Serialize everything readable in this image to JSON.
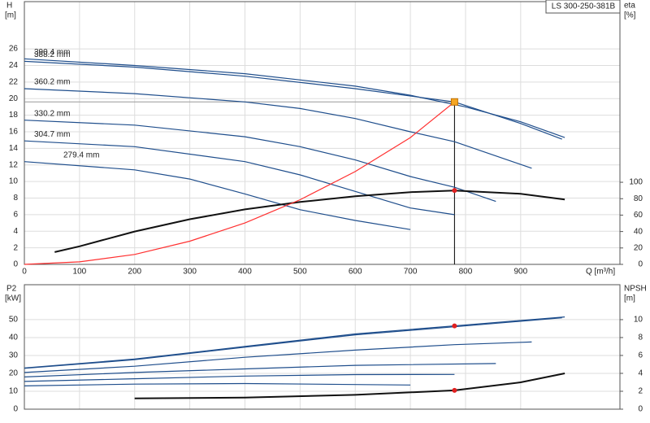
{
  "chart_data": [
    {
      "type": "line",
      "model": "LS 300-250-381B",
      "y_label": "H",
      "y_unit": "[m]",
      "y2_label": "eta",
      "y2_unit": "[%]",
      "x_label": "Q [m³/h]",
      "xlim": [
        0,
        1080
      ],
      "xticks": [
        0,
        100,
        200,
        300,
        400,
        500,
        600,
        700,
        800,
        900
      ],
      "ylim": [
        0,
        31.7
      ],
      "yticks": [
        0,
        2,
        4,
        6,
        8,
        10,
        12,
        14,
        16,
        18,
        20,
        22,
        24,
        26
      ],
      "y2lim": [
        0,
        320
      ],
      "y2ticks": [
        0,
        20,
        40,
        60,
        80,
        100
      ],
      "grid": true,
      "series": [
        {
          "name": "390.4 mm",
          "color": "#1f4e8c",
          "x": [
            0,
            200,
            400,
            600,
            700,
            800,
            900,
            980
          ],
          "values": [
            24.8,
            24.0,
            23.0,
            21.5,
            20.4,
            19.0,
            17.2,
            15.3
          ]
        },
        {
          "name": "388.2 mm",
          "color": "#1f4e8c",
          "x": [
            0,
            200,
            400,
            600,
            780,
            900,
            975
          ],
          "values": [
            24.5,
            23.8,
            22.7,
            21.2,
            19.6,
            17.0,
            15.1
          ]
        },
        {
          "name": "360.2 mm",
          "color": "#1f4e8c",
          "x": [
            0,
            200,
            400,
            500,
            600,
            700,
            780,
            920
          ],
          "values": [
            21.2,
            20.6,
            19.6,
            18.8,
            17.6,
            16.0,
            14.8,
            11.6
          ]
        },
        {
          "name": "330.2 mm",
          "color": "#1f4e8c",
          "x": [
            0,
            200,
            400,
            500,
            600,
            700,
            780,
            855
          ],
          "values": [
            17.4,
            16.8,
            15.4,
            14.2,
            12.6,
            10.6,
            9.3,
            7.6
          ]
        },
        {
          "name": "304.7 mm",
          "color": "#1f4e8c",
          "x": [
            0,
            200,
            400,
            500,
            600,
            700,
            780
          ],
          "values": [
            14.9,
            14.2,
            12.4,
            10.8,
            8.8,
            6.8,
            6.0
          ]
        },
        {
          "name": "279.4 mm",
          "color": "#1f4e8c",
          "x": [
            0,
            200,
            300,
            400,
            500,
            600,
            700
          ],
          "values": [
            12.4,
            11.4,
            10.3,
            8.5,
            6.6,
            5.3,
            4.2
          ]
        },
        {
          "color": "#111111",
          "axis": "y2",
          "width": 2,
          "x": [
            55,
            100,
            200,
            300,
            400,
            500,
            600,
            700,
            780,
            900,
            980
          ],
          "values": [
            15,
            22,
            40,
            55,
            67,
            76,
            83,
            88,
            90,
            86,
            79
          ]
        },
        {
          "color": "#ff3030",
          "x": [
            0,
            100,
            200,
            300,
            400,
            500,
            600,
            700,
            780
          ],
          "values": [
            0,
            0.3,
            1.2,
            2.8,
            5.0,
            7.8,
            11.2,
            15.3,
            19.6
          ]
        }
      ],
      "operating_point": {
        "x": 780,
        "y": 19.6,
        "color": "#f5a623"
      },
      "markers": [
        {
          "x": 780,
          "y": 90,
          "axis": "y2",
          "color": "#e02020"
        }
      ]
    },
    {
      "type": "line",
      "y_label": "P2",
      "y_unit": "[kW]",
      "y2_label": "NPSH",
      "y2_unit": "[m]",
      "xlim": [
        0,
        1080
      ],
      "xticks": [
        0,
        100,
        200,
        300,
        400,
        500,
        600,
        700,
        800,
        900
      ],
      "ylim": [
        0,
        69.5
      ],
      "yticks": [
        0,
        10,
        20,
        30,
        40,
        50
      ],
      "y2lim": [
        0,
        13.9
      ],
      "y2ticks": [
        0,
        2,
        4,
        6,
        8,
        10
      ],
      "grid": true,
      "series": [
        {
          "color": "#1f4e8c",
          "x": [
            0,
            200,
            400,
            600,
            780,
            980
          ],
          "values": [
            23,
            28,
            35,
            42,
            46.5,
            51.5
          ]
        },
        {
          "color": "#1f4e8c",
          "x": [
            0,
            200,
            400,
            600,
            780,
            975
          ],
          "values": [
            22.8,
            27.6,
            34.6,
            41.5,
            46.0,
            51.0
          ]
        },
        {
          "color": "#1f4e8c",
          "x": [
            0,
            200,
            400,
            600,
            780,
            920
          ],
          "values": [
            20.5,
            24,
            29,
            33,
            36,
            37.5
          ]
        },
        {
          "color": "#1f4e8c",
          "x": [
            0,
            200,
            400,
            600,
            855
          ],
          "values": [
            18,
            20.5,
            22.5,
            24.5,
            25.5
          ]
        },
        {
          "color": "#1f4e8c",
          "x": [
            0,
            200,
            400,
            600,
            780
          ],
          "values": [
            15.5,
            17,
            18.5,
            19.3,
            19.4
          ]
        },
        {
          "color": "#1f4e8c",
          "x": [
            0,
            200,
            400,
            700
          ],
          "values": [
            13,
            14,
            14.3,
            13.5
          ]
        },
        {
          "color": "#111111",
          "axis": "y2",
          "width": 2,
          "x": [
            200,
            400,
            600,
            780,
            900,
            980
          ],
          "values": [
            1.2,
            1.3,
            1.6,
            2.1,
            3.0,
            4.0
          ]
        }
      ],
      "markers": [
        {
          "x": 780,
          "y": 46.5,
          "color": "#e02020"
        },
        {
          "x": 780,
          "y": 2.1,
          "axis": "y2",
          "color": "#e02020"
        }
      ]
    }
  ]
}
